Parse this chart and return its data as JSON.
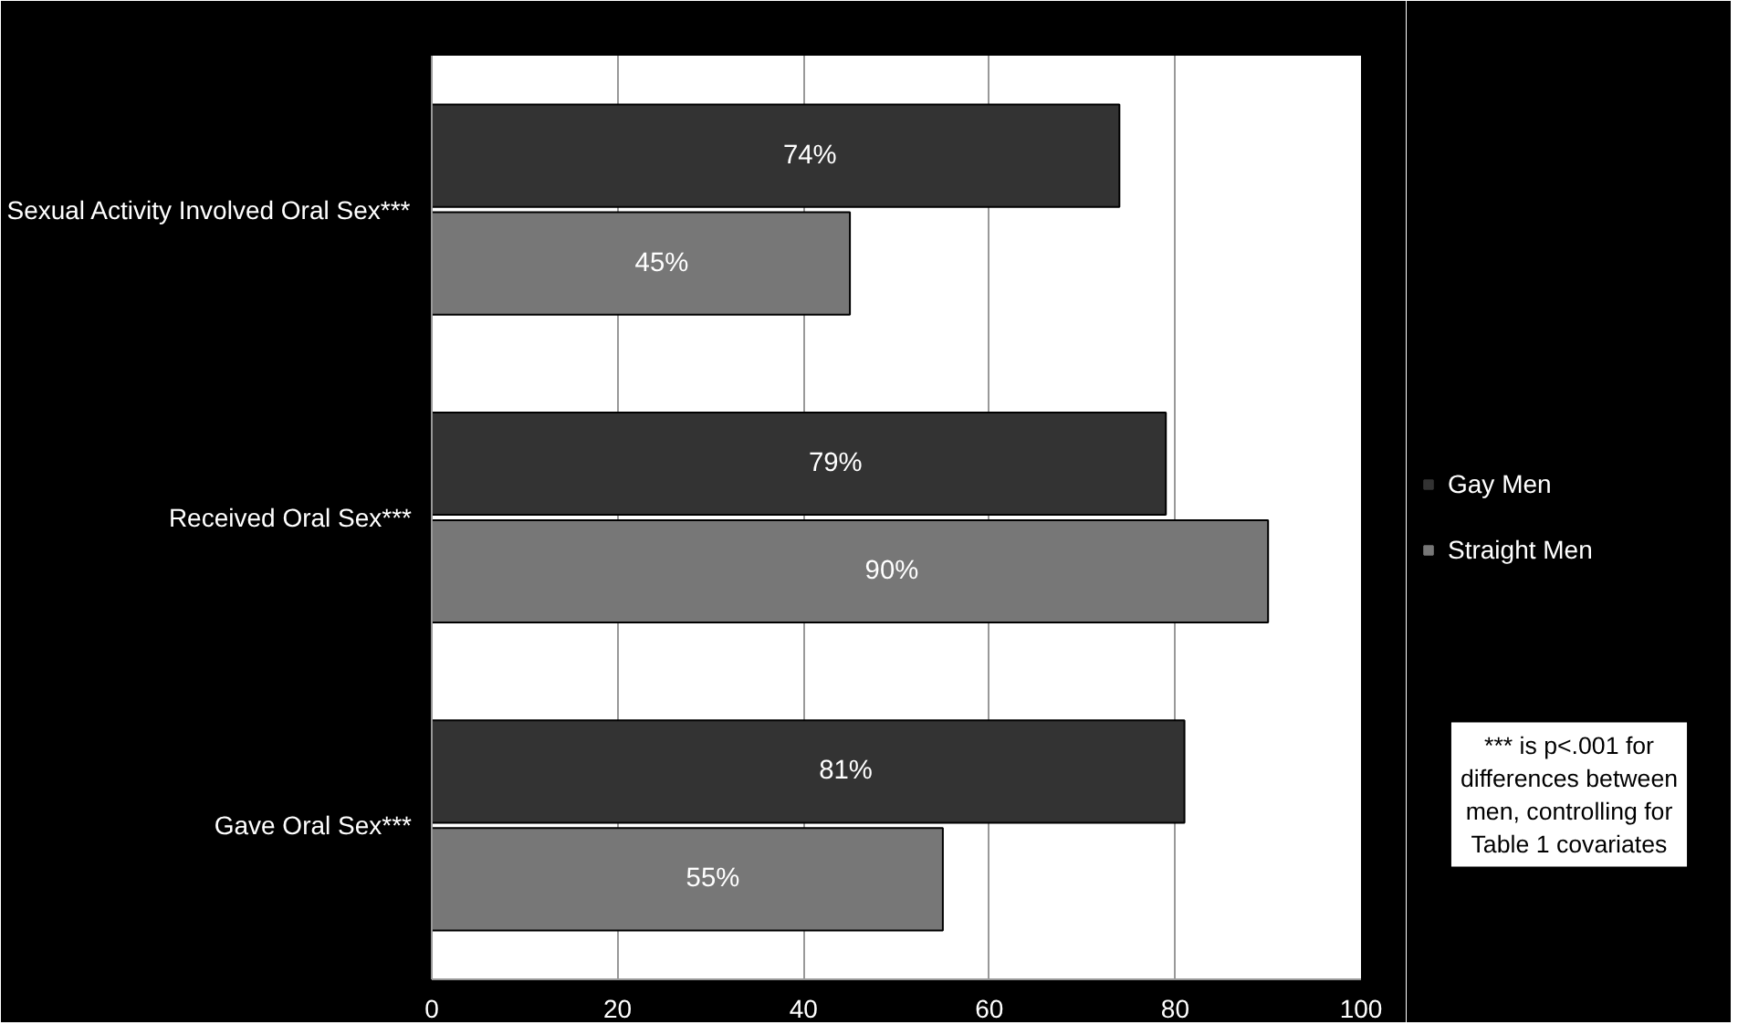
{
  "chart_data": {
    "type": "bar",
    "orientation": "horizontal",
    "categories": [
      "Sexual Activity Involved Oral Sex***",
      "Received Oral Sex***",
      "Gave Oral Sex***"
    ],
    "series": [
      {
        "name": "Gay Men",
        "color": "#333333",
        "values": [
          74,
          79,
          81
        ],
        "value_labels": [
          "74%",
          "79%",
          "81%"
        ]
      },
      {
        "name": "Straight Men",
        "color": "#777777",
        "values": [
          45,
          90,
          55
        ],
        "value_labels": [
          "45%",
          "90%",
          "55%"
        ]
      }
    ],
    "xlim": [
      0,
      100
    ],
    "xticks": [
      0,
      20,
      40,
      60,
      80,
      100
    ],
    "grid": "x",
    "legend": "right",
    "annotations": [
      "*** is p<.001 for differences between men, controlling for Table 1 covariates"
    ]
  }
}
